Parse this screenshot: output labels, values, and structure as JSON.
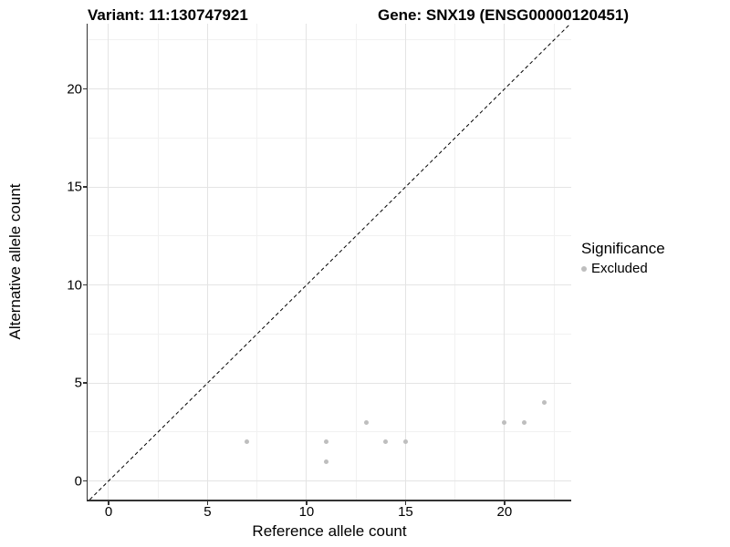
{
  "chart_data": {
    "type": "scatter",
    "title_left": "Variant: 11:130747921",
    "title_right": "Gene: SNX19 (ENSG00000120451)",
    "xlabel": "Reference allele count",
    "ylabel": "Alternative allele count",
    "xlim": [
      -1.06,
      23.37
    ],
    "ylim": [
      -0.95,
      23.33
    ],
    "x_major_ticks": [
      0,
      5,
      10,
      15,
      20
    ],
    "y_major_ticks": [
      0,
      5,
      10,
      15,
      20
    ],
    "x_minor_gridlines": [
      2.5,
      7.5,
      12.5,
      17.5,
      22.5
    ],
    "y_minor_gridlines": [
      2.5,
      7.5,
      12.5,
      17.5,
      22.5
    ],
    "grid": true,
    "identity_line": {
      "equation": "y = x",
      "style": "dashed",
      "color": "#000000"
    },
    "series": [
      {
        "name": "Excluded",
        "color": "#bebebe",
        "points": [
          [
            7,
            2
          ],
          [
            11,
            1
          ],
          [
            11,
            2
          ],
          [
            13,
            3
          ],
          [
            14,
            2
          ],
          [
            15,
            2
          ],
          [
            20,
            3
          ],
          [
            21,
            3
          ],
          [
            22,
            4
          ]
        ]
      }
    ],
    "legend": {
      "title": "Significance",
      "position": "right",
      "entries": [
        {
          "label": "Excluded",
          "color": "#bebebe"
        }
      ]
    }
  },
  "colors": {
    "point": "#bebebe",
    "major_grid": "#e4e4e4",
    "minor_grid": "#f1f1f1",
    "axis_line": "#333333",
    "text": "#000000",
    "background": "#ffffff"
  }
}
